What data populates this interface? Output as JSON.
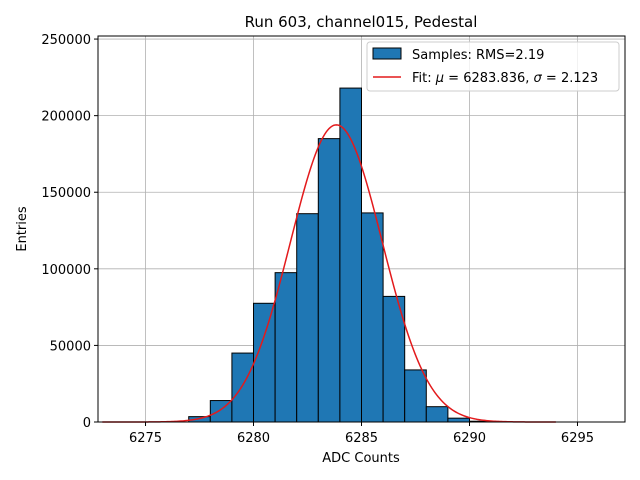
{
  "chart_data": {
    "type": "bar",
    "title": "Run 603, channel015, Pedestal",
    "xlabel": "ADC Counts",
    "ylabel": "Entries",
    "xlim": [
      6272.8,
      6297.2
    ],
    "ylim": [
      0,
      252000
    ],
    "xticks": [
      6275,
      6280,
      6285,
      6290,
      6295
    ],
    "yticks": [
      0,
      50000,
      100000,
      150000,
      200000,
      250000
    ],
    "grid": true,
    "legend_position": "top-right",
    "histogram": {
      "name": "Samples: RMS=2.19",
      "color": "#1f77b4",
      "edgecolor": "#000000",
      "bin_width": 1,
      "bin_left_edges": [
        6277,
        6278,
        6279,
        6280,
        6281,
        6282,
        6283,
        6284,
        6285,
        6286,
        6287,
        6288,
        6289,
        6290
      ],
      "values": [
        3500,
        14000,
        45000,
        77500,
        97500,
        136000,
        185000,
        218000,
        136500,
        82000,
        34000,
        10000,
        2500,
        500
      ]
    },
    "fit": {
      "name_prefix": "Fit: ",
      "mu_symbol": "μ",
      "sigma_symbol": "σ",
      "mu_value": "6283.836",
      "sigma_value": "2.123",
      "color": "#e31a1c",
      "amplitude": 194000,
      "mu": 6283.836,
      "sigma": 2.123,
      "x_range": [
        6273,
        6294
      ]
    }
  }
}
